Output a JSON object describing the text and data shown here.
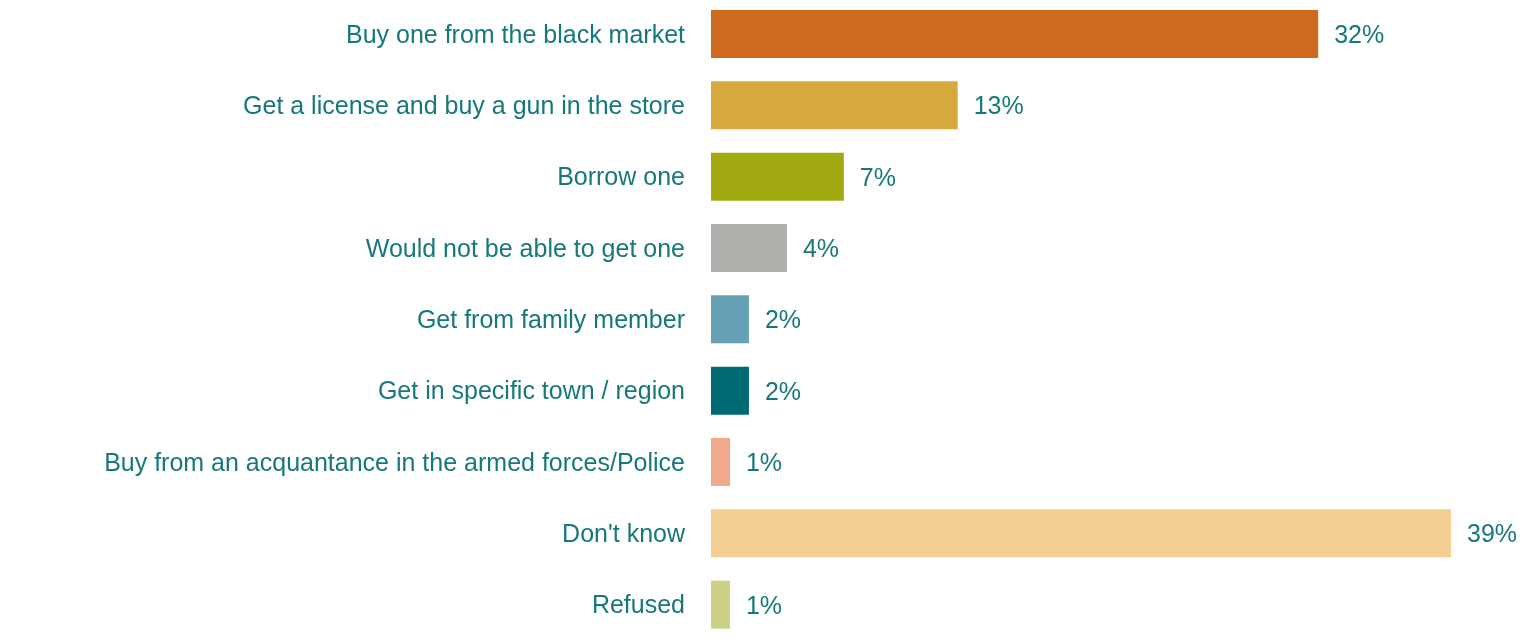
{
  "chart_data": {
    "type": "bar",
    "orientation": "horizontal",
    "categories": [
      "Buy one from the black market",
      "Get a license and buy a gun in the store",
      "Borrow one",
      "Would not be able to get one",
      "Get from family member",
      "Get in specific town / region",
      "Buy from an acquantance in the armed forces/Police",
      "Don't know",
      "Refused"
    ],
    "values": [
      32,
      13,
      7,
      4,
      2,
      2,
      1,
      39,
      1
    ],
    "colors": [
      "#cd6a1f",
      "#d6a83d",
      "#a0aa10",
      "#b0afab",
      "#66a0b5",
      "#006a73",
      "#f0a98c",
      "#f3cf91",
      "#cdd186"
    ],
    "value_labels": [
      "32%",
      "13%",
      "7%",
      "4%",
      "2%",
      "2%",
      "1%",
      "39%",
      "1%"
    ],
    "tick_labels": "y",
    "grid": false,
    "legend": false
  }
}
